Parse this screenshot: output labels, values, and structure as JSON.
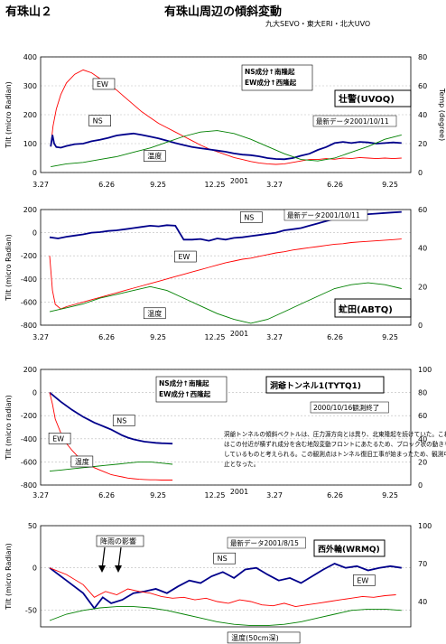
{
  "header": {
    "left_title": "有珠山２",
    "center_title": "有珠山周辺の傾斜変動",
    "credits": "九大SEVO・東大ERI・北大UVO"
  },
  "colors": {
    "ns": "#00008b",
    "ew": "#ff0000",
    "temp": "#008000",
    "grid": "#bbbbbb"
  },
  "x_axis": {
    "ticks": [
      "3.27",
      "6.26",
      "9.25",
      "12.25",
      "3.27",
      "6.26",
      "9.25"
    ],
    "year_label": "2001"
  },
  "chart_data": [
    {
      "type": "line",
      "station": "壮警(UVOQ)",
      "ylabel": "Tilt (micro Radian)",
      "y2label": "Temp (degree)",
      "ylim": [
        0,
        400
      ],
      "y2lim": [
        0,
        80
      ],
      "yticks": [
        0,
        100,
        200,
        300,
        400
      ],
      "y2ticks": [
        0,
        20,
        40,
        60,
        80
      ],
      "note": "最新データ2001/10/11",
      "legend_lines": [
        "NS成分↑南隆起",
        "EW成分↑西隆起"
      ],
      "series": [
        {
          "name": "EW",
          "axis": "left",
          "color": "#ff0000",
          "x": [
            0.02,
            0.06,
            0.12,
            0.2,
            0.3,
            0.45,
            0.6,
            0.75,
            0.9,
            1.05,
            1.2,
            1.35,
            1.5,
            1.65,
            1.8,
            1.95,
            2.1,
            2.25,
            2.4,
            2.55,
            2.7,
            2.85,
            3.0,
            3.15,
            3.3,
            3.45,
            3.6,
            3.75,
            3.9,
            4.05,
            4.2,
            4.35,
            4.5,
            4.65,
            4.8,
            4.95,
            5.1,
            5.25,
            5.4,
            5.55,
            5.7,
            5.85,
            6.0,
            6.15,
            6.3
          ],
          "y": [
            90,
            160,
            220,
            270,
            310,
            340,
            355,
            345,
            325,
            305,
            285,
            260,
            235,
            210,
            190,
            170,
            155,
            140,
            125,
            110,
            95,
            82,
            72,
            62,
            52,
            45,
            38,
            33,
            30,
            28,
            30,
            35,
            40,
            45,
            45,
            48,
            46,
            50,
            48,
            52,
            50,
            48,
            50,
            48,
            50
          ]
        },
        {
          "name": "NS",
          "axis": "left",
          "color": "#00008b",
          "x": [
            0.02,
            0.05,
            0.08,
            0.12,
            0.2,
            0.3,
            0.45,
            0.6,
            0.75,
            0.9,
            1.05,
            1.2,
            1.35,
            1.5,
            1.65,
            1.8,
            1.95,
            2.1,
            2.25,
            2.4,
            2.55,
            2.7,
            2.85,
            3.0,
            3.15,
            3.3,
            3.45,
            3.6,
            3.75,
            3.9,
            4.05,
            4.2,
            4.35,
            4.5,
            4.65,
            4.8,
            4.95,
            5.1,
            5.25,
            5.4,
            5.55,
            5.7,
            5.85,
            6.0,
            6.15,
            6.3
          ],
          "y": [
            90,
            130,
            100,
            88,
            86,
            92,
            98,
            100,
            108,
            113,
            120,
            128,
            132,
            135,
            130,
            124,
            118,
            110,
            102,
            95,
            88,
            84,
            80,
            76,
            72,
            66,
            62,
            60,
            56,
            50,
            47,
            46,
            50,
            58,
            65,
            78,
            88,
            102,
            106,
            102,
            106,
            104,
            100,
            102,
            104,
            102
          ]
        },
        {
          "name": "温度",
          "axis": "right",
          "color": "#008000",
          "x": [
            0.02,
            0.3,
            0.6,
            0.9,
            1.2,
            1.5,
            1.8,
            2.1,
            2.4,
            2.7,
            3.0,
            3.3,
            3.6,
            3.9,
            4.2,
            4.5,
            4.8,
            5.1,
            5.4,
            5.7,
            6.0,
            6.3
          ],
          "y": [
            4,
            6,
            7,
            9,
            11,
            14,
            17,
            21,
            25,
            28,
            29,
            27,
            23,
            18,
            13,
            9,
            8,
            10,
            14,
            18,
            23,
            26
          ]
        }
      ],
      "series_labels": [
        {
          "text": "EW",
          "x": 0.84,
          "y": 297
        },
        {
          "text": "NS",
          "x": 0.77,
          "y": 170
        },
        {
          "text": "温度",
          "x": 1.75,
          "y": 48
        }
      ]
    },
    {
      "type": "line",
      "station": "虻田(ABTQ)",
      "ylabel": "Tilt (micro Radian)",
      "y2label": "",
      "ylim": [
        -800,
        200
      ],
      "y2lim": [
        0,
        60
      ],
      "yticks": [
        -800,
        -600,
        -400,
        -200,
        0,
        200
      ],
      "y2ticks": [
        0,
        20,
        40,
        60
      ],
      "note": "最新データ2001/10/11",
      "legend_lines": [],
      "series": [
        {
          "name": "NS",
          "axis": "left",
          "color": "#00008b",
          "x": [
            0.0,
            0.15,
            0.3,
            0.45,
            0.6,
            0.75,
            0.9,
            1.05,
            1.2,
            1.35,
            1.5,
            1.65,
            1.8,
            1.95,
            2.1,
            2.25,
            2.4,
            2.55,
            2.7,
            2.85,
            3.0,
            3.15,
            3.3,
            3.45,
            3.6,
            3.75,
            3.9,
            4.05,
            4.2,
            4.35,
            4.5,
            4.65,
            4.8,
            4.95,
            5.1,
            5.25,
            5.4,
            5.55,
            5.7,
            5.85,
            6.0,
            6.15,
            6.3
          ],
          "y": [
            -40,
            -50,
            -35,
            -25,
            -15,
            0,
            5,
            15,
            20,
            30,
            40,
            50,
            60,
            55,
            65,
            60,
            -60,
            -60,
            -55,
            -70,
            -50,
            -60,
            -45,
            -40,
            -30,
            -20,
            -10,
            0,
            20,
            30,
            40,
            60,
            80,
            100,
            120,
            130,
            140,
            150,
            160,
            165,
            170,
            175,
            180
          ]
        },
        {
          "name": "EW",
          "axis": "left",
          "color": "#ff0000",
          "x": [
            0.0,
            0.05,
            0.1,
            0.2,
            0.3,
            0.45,
            0.6,
            0.75,
            0.9,
            1.05,
            1.2,
            1.35,
            1.5,
            1.65,
            1.8,
            1.95,
            2.1,
            2.25,
            2.4,
            2.55,
            2.7,
            2.85,
            3.0,
            3.15,
            3.3,
            3.45,
            3.6,
            3.75,
            3.9,
            4.05,
            4.2,
            4.35,
            4.5,
            4.65,
            4.8,
            4.95,
            5.1,
            5.25,
            5.4,
            5.55,
            5.7,
            5.85,
            6.0,
            6.15,
            6.3
          ],
          "y": [
            -200,
            -500,
            -620,
            -660,
            -640,
            -620,
            -600,
            -580,
            -560,
            -540,
            -520,
            -500,
            -480,
            -460,
            -440,
            -420,
            -400,
            -380,
            -360,
            -340,
            -320,
            -300,
            -280,
            -260,
            -245,
            -230,
            -220,
            -205,
            -190,
            -175,
            -165,
            -150,
            -140,
            -130,
            -120,
            -110,
            -100,
            -95,
            -85,
            -80,
            -75,
            -70,
            -65,
            -60,
            -55
          ]
        },
        {
          "name": "温度",
          "axis": "right",
          "color": "#008000",
          "x": [
            0.0,
            0.3,
            0.6,
            0.9,
            1.2,
            1.5,
            1.8,
            2.1,
            2.4,
            2.7,
            3.0,
            3.3,
            3.6,
            3.9,
            4.2,
            4.5,
            4.8,
            5.1,
            5.4,
            5.7,
            6.0,
            6.3
          ],
          "y": [
            7,
            9,
            11,
            14,
            16,
            18,
            20,
            18,
            14,
            10,
            6,
            3,
            1,
            3,
            7,
            11,
            15,
            19,
            21,
            22,
            21,
            19
          ]
        }
      ],
      "series_labels": [
        {
          "text": "NS",
          "x": 3.48,
          "y": 110
        },
        {
          "text": "EW",
          "x": 2.3,
          "y": -230
        },
        {
          "text": "温度",
          "x": 1.75,
          "y": -720
        }
      ]
    },
    {
      "type": "line",
      "station": "洞爺トンネル1(TYTQ1)",
      "ylabel": "Tilt (micro radian)",
      "y2label": "",
      "ylim": [
        -800,
        200
      ],
      "y2lim": [
        0,
        100
      ],
      "yticks": [
        -800,
        -600,
        -400,
        -200,
        0,
        200
      ],
      "y2ticks": [
        0,
        20,
        40,
        60,
        80,
        100
      ],
      "note": "2000/10/16観測終了",
      "legend_lines": [
        "NS成分↑南隆起",
        "EW成分↑西隆起"
      ],
      "description": "洞爺トンネルの傾斜ベクトルは、圧力源方向とは異り、北東隆起を続けていた。これはこの付近が横ずれ成分を含む地殻変動フロントにあたるため、ブロック状の動きをしているものと考えられる。この観測点はトンネル復旧工事が始まったため、観測中止となった。",
      "series": [
        {
          "name": "NS",
          "axis": "left",
          "color": "#00008b",
          "x": [
            0.0,
            0.1,
            0.2,
            0.3,
            0.4,
            0.5,
            0.6,
            0.7,
            0.8,
            0.9,
            1.0,
            1.1,
            1.2,
            1.3,
            1.4,
            1.5,
            1.6,
            1.7,
            1.8,
            1.9,
            2.0,
            2.1,
            2.2
          ],
          "y": [
            0,
            -40,
            -80,
            -115,
            -150,
            -180,
            -210,
            -235,
            -260,
            -280,
            -300,
            -320,
            -345,
            -370,
            -390,
            -405,
            -415,
            -425,
            -430,
            -435,
            -438,
            -440,
            -442
          ]
        },
        {
          "name": "EW",
          "axis": "left",
          "color": "#ff0000",
          "x": [
            0.0,
            0.05,
            0.1,
            0.2,
            0.3,
            0.4,
            0.5,
            0.6,
            0.7,
            0.8,
            0.9,
            1.0,
            1.1,
            1.2,
            1.3,
            1.4,
            1.5,
            1.6,
            1.7,
            1.8,
            1.9,
            2.0,
            2.1,
            2.2
          ],
          "y": [
            0,
            -100,
            -230,
            -350,
            -440,
            -500,
            -550,
            -590,
            -620,
            -650,
            -670,
            -690,
            -710,
            -720,
            -730,
            -740,
            -745,
            -750,
            -752,
            -755,
            -755,
            -757,
            -757,
            -757
          ]
        },
        {
          "name": "温度",
          "axis": "right",
          "color": "#008000",
          "x": [
            0.0,
            0.2,
            0.4,
            0.6,
            0.8,
            1.0,
            1.2,
            1.4,
            1.6,
            1.8,
            2.0,
            2.2
          ],
          "y": [
            12,
            13,
            14,
            15,
            16,
            17,
            18,
            19,
            20,
            20,
            19,
            18
          ]
        }
      ],
      "series_labels": [
        {
          "text": "NS",
          "x": 1.2,
          "y": -265
        },
        {
          "text": "EW",
          "x": 0.05,
          "y": -420
        },
        {
          "text": "温度",
          "x": 0.45,
          "y": -620
        }
      ]
    },
    {
      "type": "line",
      "station": "西外輪(WRMQ)",
      "ylabel": "Tilt (micro Radian)",
      "y2label": "",
      "ylim": [
        -70,
        50
      ],
      "y2lim": [
        20,
        100
      ],
      "yticks": [
        -50,
        0,
        50
      ],
      "y2ticks": [
        40,
        70,
        100
      ],
      "note": "最新データ2001/8/15",
      "legend_lines": [],
      "annotation": "降雨の影響",
      "series": [
        {
          "name": "NS",
          "axis": "left",
          "color": "#00008b",
          "x": [
            0.0,
            0.3,
            0.6,
            0.8,
            0.95,
            1.1,
            1.3,
            1.5,
            1.7,
            1.9,
            2.1,
            2.3,
            2.5,
            2.7,
            2.9,
            3.1,
            3.3,
            3.5,
            3.7,
            3.9,
            4.1,
            4.3,
            4.5,
            4.7,
            4.9,
            5.1,
            5.3,
            5.5,
            5.7,
            5.9,
            6.1,
            6.3
          ],
          "y": [
            0,
            -15,
            -30,
            -48,
            -35,
            -42,
            -38,
            -30,
            -28,
            -25,
            -30,
            -22,
            -15,
            -18,
            -10,
            -5,
            -12,
            -2,
            0,
            -8,
            -15,
            -12,
            -18,
            -10,
            -2,
            5,
            0,
            2,
            -3,
            0,
            2,
            0
          ]
        },
        {
          "name": "EW",
          "axis": "left",
          "color": "#ff0000",
          "x": [
            0.0,
            0.3,
            0.6,
            0.8,
            1.0,
            1.2,
            1.4,
            1.6,
            1.8,
            2.0,
            2.2,
            2.4,
            2.6,
            2.8,
            3.0,
            3.2,
            3.4,
            3.6,
            3.8,
            4.0,
            4.2,
            4.4,
            4.6,
            4.8,
            5.0,
            5.2,
            5.4,
            5.6,
            5.8,
            6.0,
            6.2
          ],
          "y": [
            0,
            -8,
            -20,
            -35,
            -28,
            -32,
            -25,
            -28,
            -30,
            -34,
            -36,
            -35,
            -38,
            -36,
            -40,
            -42,
            -38,
            -40,
            -44,
            -45,
            -42,
            -46,
            -44,
            -42,
            -40,
            -38,
            -36,
            -34,
            -35,
            -33,
            -32
          ]
        },
        {
          "name": "温度(50cm深)",
          "axis": "right",
          "color": "#008000",
          "x": [
            0.0,
            0.3,
            0.6,
            0.9,
            1.2,
            1.5,
            1.8,
            2.1,
            2.4,
            2.7,
            3.0,
            3.3,
            3.6,
            3.9,
            4.2,
            4.5,
            4.8,
            5.1,
            5.4,
            5.7,
            6.0,
            6.3
          ],
          "y": [
            25,
            30,
            33,
            35,
            36,
            36,
            35,
            33,
            30,
            27,
            24,
            22,
            21,
            21,
            22,
            24,
            27,
            30,
            33,
            34,
            34,
            33
          ]
        }
      ],
      "series_labels": [
        {
          "text": "NS",
          "x": 3.0,
          "y": 8
        },
        {
          "text": "EW",
          "x": 5.5,
          "y": -18
        },
        {
          "text": "温度(50cm深)",
          "x": 3.25,
          "y": -86
        }
      ]
    }
  ]
}
